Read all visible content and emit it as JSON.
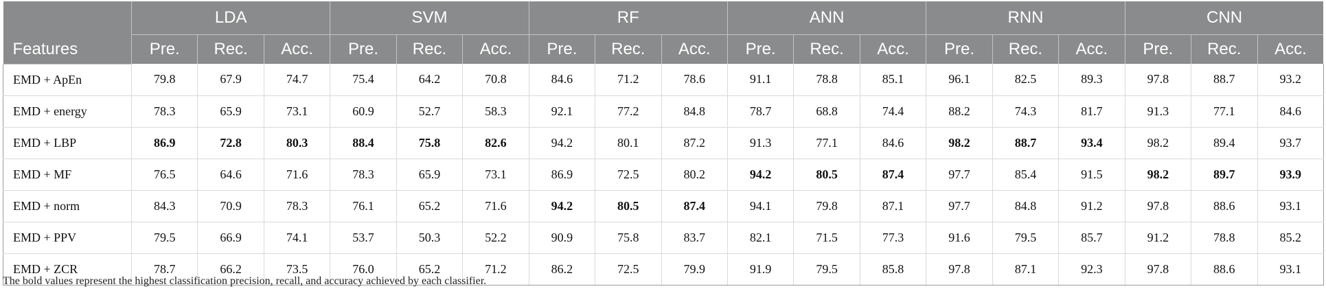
{
  "table": {
    "features_header": "Features",
    "classifiers": [
      "LDA",
      "SVM",
      "RF",
      "ANN",
      "RNN",
      "CNN"
    ],
    "metrics": [
      "Pre.",
      "Rec.",
      "Acc."
    ],
    "rows": [
      {
        "feature": "EMD + ApEn",
        "values": [
          "79.8",
          "67.9",
          "74.7",
          "75.4",
          "64.2",
          "70.8",
          "84.6",
          "71.2",
          "78.6",
          "91.1",
          "78.8",
          "85.1",
          "96.1",
          "82.5",
          "89.3",
          "97.8",
          "88.7",
          "93.2"
        ],
        "bold": []
      },
      {
        "feature": "EMD + energy",
        "values": [
          "78.3",
          "65.9",
          "73.1",
          "60.9",
          "52.7",
          "58.3",
          "92.1",
          "77.2",
          "84.8",
          "78.7",
          "68.8",
          "74.4",
          "88.2",
          "74.3",
          "81.7",
          "91.3",
          "77.1",
          "84.6"
        ],
        "bold": []
      },
      {
        "feature": "EMD + LBP",
        "values": [
          "86.9",
          "72.8",
          "80.3",
          "88.4",
          "75.8",
          "82.6",
          "94.2",
          "80.1",
          "87.2",
          "91.3",
          "77.1",
          "84.6",
          "98.2",
          "88.7",
          "93.4",
          "98.2",
          "89.4",
          "93.7"
        ],
        "bold": [
          0,
          1,
          2,
          3,
          4,
          5,
          12,
          13,
          14
        ]
      },
      {
        "feature": "EMD + MF",
        "values": [
          "76.5",
          "64.6",
          "71.6",
          "78.3",
          "65.9",
          "73.1",
          "86.9",
          "72.5",
          "80.2",
          "94.2",
          "80.5",
          "87.4",
          "97.7",
          "85.4",
          "91.5",
          "98.2",
          "89.7",
          "93.9"
        ],
        "bold": [
          9,
          10,
          11,
          15,
          16,
          17
        ]
      },
      {
        "feature": "EMD + norm",
        "values": [
          "84.3",
          "70.9",
          "78.3",
          "76.1",
          "65.2",
          "71.6",
          "94.2",
          "80.5",
          "87.4",
          "94.1",
          "79.8",
          "87.1",
          "97.7",
          "84.8",
          "91.2",
          "97.8",
          "88.6",
          "93.1"
        ],
        "bold": [
          6,
          7,
          8
        ]
      },
      {
        "feature": "EMD + PPV",
        "values": [
          "79.5",
          "66.9",
          "74.1",
          "53.7",
          "50.3",
          "52.2",
          "90.9",
          "75.8",
          "83.7",
          "82.1",
          "71.5",
          "77.3",
          "91.6",
          "79.5",
          "85.7",
          "91.2",
          "78.8",
          "85.2"
        ],
        "bold": []
      },
      {
        "feature": "EMD + ZCR",
        "values": [
          "78.7",
          "66.2",
          "73.5",
          "76.0",
          "65.2",
          "71.2",
          "86.2",
          "72.5",
          "79.9",
          "91.9",
          "79.5",
          "85.8",
          "97.8",
          "87.1",
          "92.3",
          "97.8",
          "88.6",
          "93.1"
        ],
        "bold": []
      }
    ],
    "footnote": "The bold values represent the highest classification precision, recall, and accuracy achieved by each classifier."
  },
  "colors": {
    "header_bg": "#8a8b8c",
    "header_text": "#ffffff"
  }
}
